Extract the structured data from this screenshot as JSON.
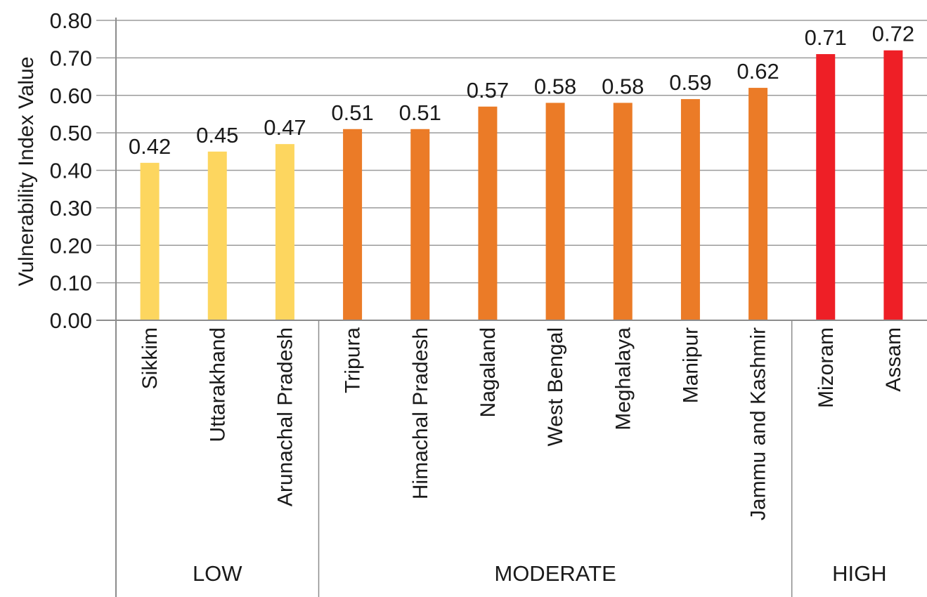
{
  "chart_data": {
    "type": "bar",
    "title": "",
    "xlabel": "",
    "ylabel": "Vulnerability Index Value",
    "ylim": [
      0,
      0.8
    ],
    "yticks": [
      "0.00",
      "0.10",
      "0.20",
      "0.30",
      "0.40",
      "0.50",
      "0.60",
      "0.70",
      "0.80"
    ],
    "grid": true,
    "categories": [
      "Sikkim",
      "Uttarakhand",
      "Arunachal Pradesh",
      "Tripura",
      "Himachal Pradesh",
      "Nagaland",
      "West Bengal",
      "Meghalaya",
      "Manipur",
      "Jammu and Kashmir",
      "Mizoram",
      "Assam"
    ],
    "values": [
      0.42,
      0.45,
      0.47,
      0.51,
      0.51,
      0.57,
      0.58,
      0.58,
      0.59,
      0.62,
      0.71,
      0.72
    ],
    "data_labels": [
      "0.42",
      "0.45",
      "0.47",
      "0.51",
      "0.51",
      "0.57",
      "0.58",
      "0.58",
      "0.59",
      "0.62",
      "0.71",
      "0.72"
    ],
    "groups": [
      {
        "name": "LOW",
        "count": 3,
        "color": "#FDD65F"
      },
      {
        "name": "MODERATE",
        "count": 7,
        "color": "#EB7B27"
      },
      {
        "name": "HIGH",
        "count": 2,
        "color": "#EE1F26"
      }
    ]
  }
}
